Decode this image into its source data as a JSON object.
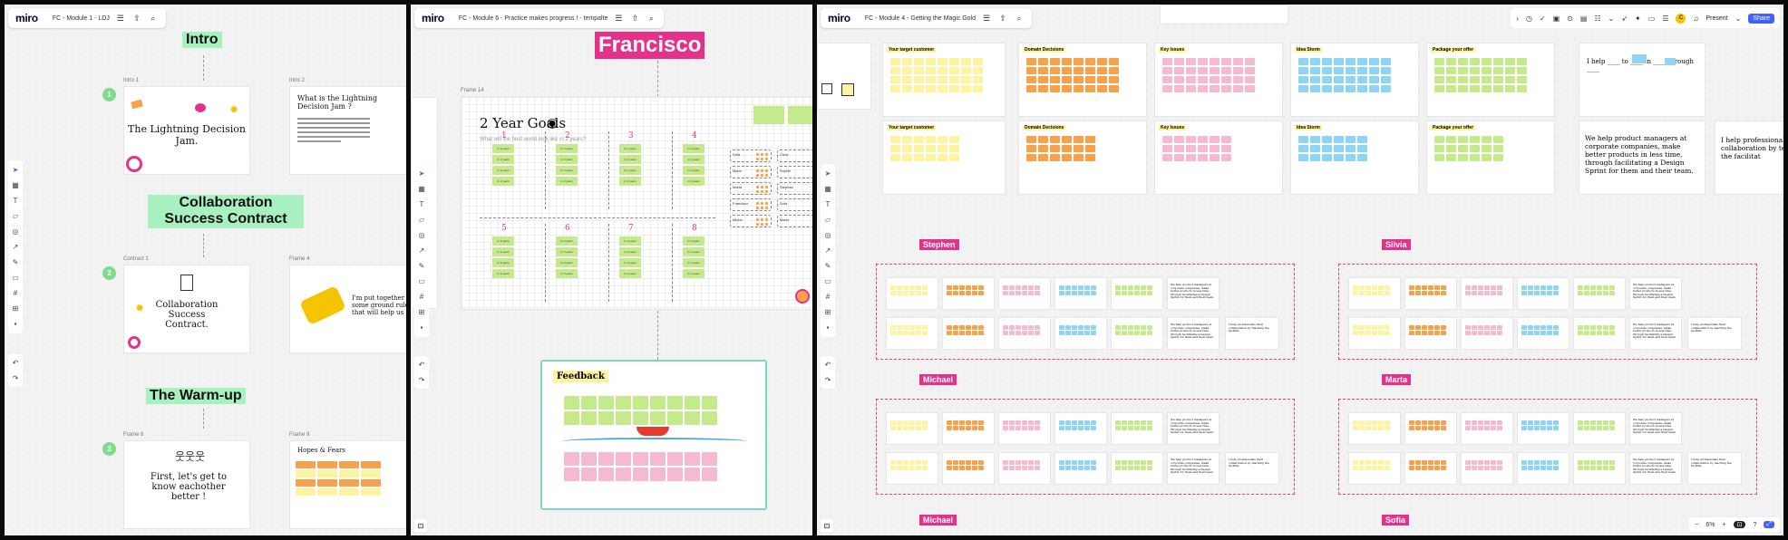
{
  "colors": {
    "green_sticky": "#c5ea8b",
    "orange_sticky": "#f7a14a",
    "pink_sticky": "#f5b9d0",
    "blue_sticky": "#8ed4f5",
    "yellow_sticky": "#fdf3a0",
    "title_green": "#a8f0c0",
    "pink_label": "#e6318a",
    "accent_blue": "#4262ff"
  },
  "pane1": {
    "logo": "miro",
    "board_name": "FC - Module 1 - LDJ",
    "icons": [
      "menu-icon",
      "upload-icon",
      "search-icon"
    ],
    "sections": [
      {
        "title": "Intro",
        "number": "1",
        "frames": [
          {
            "label": "Intro 1",
            "title": "The Lightning Decision Jam."
          },
          {
            "label": "Intro 2",
            "title": "What is the Lightning Decision Jam ?"
          }
        ]
      },
      {
        "title": "Collaboration Success Contract",
        "number": "2",
        "frames": [
          {
            "label": "Contract 1",
            "title": "Collaboration Success Contract."
          },
          {
            "label": "Frame 4",
            "title": "I'm put together some ground rules that will help us"
          }
        ]
      },
      {
        "title": "The Warm-up",
        "number": "3",
        "frames": [
          {
            "label": "Frame 8",
            "title": "First, let's get to know eachother better !"
          },
          {
            "label": "Frame 9",
            "title": "Hopes & Fears"
          }
        ]
      }
    ]
  },
  "pane2": {
    "logo": "miro",
    "board_name": "FC - Module 6 - Practice makes progress ! - tempalte",
    "person": "Francisco",
    "frame_label": "Frame 14",
    "goals_title": "2 Year Goals",
    "goals_subtitle": "What will the best world look like in 2 years?",
    "columns_top": [
      "1",
      "2",
      "3",
      "4"
    ],
    "columns_bottom": [
      "5",
      "6",
      "7",
      "8"
    ],
    "sticky_text": "In 2 years",
    "side_names": [
      "Sofa",
      "Mario",
      "Marta",
      "Francisco",
      "Miche",
      "Chris",
      "Sophie",
      "Stephan"
    ],
    "feedback_title": "Feedback"
  },
  "pane3": {
    "logo": "miro",
    "board_name": "FC - Module 4 - Getting the Magic Gold",
    "top_frames": [
      {
        "title": "Your target customer"
      },
      {
        "title": "Domain Decisions"
      },
      {
        "title": "Key Issues"
      },
      {
        "title": "Idea Storm"
      },
      {
        "title": "Package your offer"
      }
    ],
    "helper_text": "I help ____ to ____ in ____ through ____",
    "statement": "We help product managers at corporate companies, make better products in less time, through facilitating a Design Sprint for them and their team.",
    "statement2": "I help professionals their collaboration by teaching the facilitat",
    "people": [
      "Stephen",
      "Silvia",
      "Michael",
      "Marta",
      "Michael",
      "Sofia"
    ],
    "present_label": "Present",
    "share_label": "Share",
    "avatar_letter": "C",
    "zoom_level": "6%"
  }
}
